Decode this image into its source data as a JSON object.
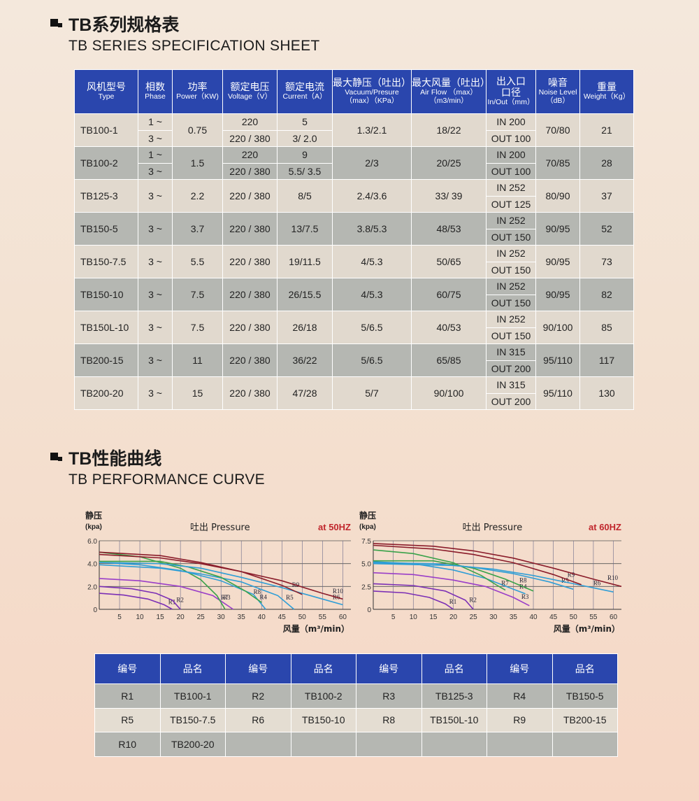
{
  "section1": {
    "title_cn": "TB系列规格表",
    "title_en": "TB SERIES SPECIFICATION SHEET"
  },
  "spec_headers": [
    {
      "cn": "风机型号",
      "en": "Type"
    },
    {
      "cn": "相数",
      "en": "Phase"
    },
    {
      "cn": "功率",
      "en": "Power（KW)"
    },
    {
      "cn": "额定电压",
      "en": "Voltage（V）"
    },
    {
      "cn": "额定电流",
      "en": "Current（A）"
    },
    {
      "cn": "最大静压（吐出）",
      "en": "Vacuum/Presure",
      "en2": "（max）（KPa）"
    },
    {
      "cn": "最大风量（吐出）",
      "en": "Air Flow （max）",
      "en2": "（m3/min）"
    },
    {
      "cn": "出入口",
      "cn2": "口径",
      "en": "In/Out（mm）"
    },
    {
      "cn": "噪音",
      "en": "Noise Level",
      "en2": "（dB）"
    },
    {
      "cn": "重量",
      "en": "Weight（Kg）"
    }
  ],
  "spec_rows": [
    {
      "type": "TB100-1",
      "phase": [
        "1 ~",
        "3 ~"
      ],
      "power": "0.75",
      "voltage": [
        "220",
        "220 / 380"
      ],
      "current": [
        "5",
        "3/ 2.0"
      ],
      "pressure": "1.3/2.1",
      "airflow": "18/22",
      "in": "IN 200",
      "out": "OUT 100",
      "noise": "70/80",
      "weight": "21"
    },
    {
      "type": "TB100-2",
      "phase": [
        "1 ~",
        "3 ~"
      ],
      "power": "1.5",
      "voltage": [
        "220",
        "220 / 380"
      ],
      "current": [
        "9",
        "5.5/ 3.5"
      ],
      "pressure": "2/3",
      "airflow": "20/25",
      "in": "IN 200",
      "out": "OUT 100",
      "noise": "70/85",
      "weight": "28"
    },
    {
      "type": "TB125-3",
      "phase": [
        "3 ~"
      ],
      "power": "2.2",
      "voltage": [
        "220 / 380"
      ],
      "current": [
        "8/5"
      ],
      "pressure": "2.4/3.6",
      "airflow": "33/ 39",
      "in": "IN 252",
      "out": "OUT 125",
      "noise": "80/90",
      "weight": "37"
    },
    {
      "type": "TB150-5",
      "phase": [
        "3 ~"
      ],
      "power": "3.7",
      "voltage": [
        "220 / 380"
      ],
      "current": [
        "13/7.5"
      ],
      "pressure": "3.8/5.3",
      "airflow": "48/53",
      "in": "IN 252",
      "out": "OUT 150",
      "noise": "90/95",
      "weight": "52"
    },
    {
      "type": "TB150-7.5",
      "phase": [
        "3 ~"
      ],
      "power": "5.5",
      "voltage": [
        "220 / 380"
      ],
      "current": [
        "19/11.5"
      ],
      "pressure": "4/5.3",
      "airflow": "50/65",
      "in": "IN 252",
      "out": "OUT 150",
      "noise": "90/95",
      "weight": "73"
    },
    {
      "type": "TB150-10",
      "phase": [
        "3 ~"
      ],
      "power": "7.5",
      "voltage": [
        "220 / 380"
      ],
      "current": [
        "26/15.5"
      ],
      "pressure": "4/5.3",
      "airflow": "60/75",
      "in": "IN 252",
      "out": "OUT 150",
      "noise": "90/95",
      "weight": "82"
    },
    {
      "type": "TB150L-10",
      "phase": [
        "3 ~"
      ],
      "power": "7.5",
      "voltage": [
        "220 / 380"
      ],
      "current": [
        "26/18"
      ],
      "pressure": "5/6.5",
      "airflow": "40/53",
      "in": "IN 252",
      "out": "OUT 150",
      "noise": "90/100",
      "weight": "85"
    },
    {
      "type": "TB200-15",
      "phase": [
        "3 ~"
      ],
      "power": "11",
      "voltage": [
        "220 / 380"
      ],
      "current": [
        "36/22"
      ],
      "pressure": "5/6.5",
      "airflow": "65/85",
      "in": "IN 315",
      "out": "OUT 200",
      "noise": "95/110",
      "weight": "117"
    },
    {
      "type": "TB200-20",
      "phase": [
        "3 ~"
      ],
      "power": "15",
      "voltage": [
        "220 / 380"
      ],
      "current": [
        "47/28"
      ],
      "pressure": "5/7",
      "airflow": "90/100",
      "in": "IN 315",
      "out": "OUT 200",
      "noise": "95/110",
      "weight": "130"
    }
  ],
  "section2": {
    "title_cn": "TB性能曲线",
    "title_en": "TB PERFORMANCE CURVE"
  },
  "colors": {
    "header_blue": "#2a46ad",
    "row_light": "#e1d9ce",
    "row_dark": "#b5b7b2",
    "hz_red": "#c0262c"
  },
  "chart_data": [
    {
      "type": "line",
      "ylabel": "静压",
      "ylabel_unit": "(kpa)",
      "title": "吐出 Pressure",
      "freq": "at 50HZ",
      "xlabel": "风量（m³/min）",
      "xlim": [
        0,
        62
      ],
      "ylim": [
        0,
        6
      ],
      "xticks": [
        5,
        10,
        15,
        20,
        25,
        30,
        35,
        40,
        45,
        50,
        55,
        60
      ],
      "yticks": [
        "0",
        "2.0",
        "4.0",
        "6.0"
      ],
      "series": [
        {
          "name": "R1",
          "color": "#7b2fb5",
          "points": [
            [
              0,
              1.4
            ],
            [
              6,
              1.25
            ],
            [
              12,
              0.9
            ],
            [
              16,
              0.4
            ],
            [
              18,
              0
            ]
          ]
        },
        {
          "name": "R2",
          "color": "#7b2fb5",
          "points": [
            [
              0,
              2.0
            ],
            [
              8,
              1.8
            ],
            [
              14,
              1.4
            ],
            [
              18,
              0.8
            ],
            [
              20,
              0
            ]
          ]
        },
        {
          "name": "R3",
          "color": "#9a3ec8",
          "points": [
            [
              0,
              2.7
            ],
            [
              10,
              2.5
            ],
            [
              20,
              2.0
            ],
            [
              28,
              1.2
            ],
            [
              33,
              0
            ]
          ]
        },
        {
          "name": "R7",
          "color": "#3aa24a",
          "points": [
            [
              0,
              5.0
            ],
            [
              10,
              4.6
            ],
            [
              20,
              3.6
            ],
            [
              25,
              2.6
            ],
            [
              29,
              1.2
            ],
            [
              31,
              0
            ]
          ]
        },
        {
          "name": "R4",
          "color": "#2f9ed6",
          "points": [
            [
              0,
              4.1
            ],
            [
              10,
              3.9
            ],
            [
              20,
              3.4
            ],
            [
              30,
              2.5
            ],
            [
              38,
              1.3
            ],
            [
              41,
              0
            ]
          ]
        },
        {
          "name": "R5",
          "color": "#2f9ed6",
          "points": [
            [
              0,
              3.9
            ],
            [
              15,
              3.6
            ],
            [
              25,
              3.1
            ],
            [
              35,
              2.4
            ],
            [
              44,
              1.2
            ],
            [
              48,
              0
            ]
          ]
        },
        {
          "name": "R8",
          "color": "#3aa24a",
          "points": [
            [
              0,
              4.2
            ],
            [
              15,
              4.2
            ],
            [
              22,
              3.7
            ],
            [
              30,
              2.8
            ],
            [
              36,
              1.6
            ],
            [
              40,
              0.6
            ]
          ]
        },
        {
          "name": "R6",
          "color": "#2f9ed6",
          "points": [
            [
              0,
              4.1
            ],
            [
              15,
              4.0
            ],
            [
              25,
              3.6
            ],
            [
              35,
              2.8
            ],
            [
              45,
              1.9
            ],
            [
              55,
              0.9
            ],
            [
              60,
              0.4
            ]
          ]
        },
        {
          "name": "R9",
          "color": "#8a1c2a",
          "points": [
            [
              0,
              5.0
            ],
            [
              15,
              4.7
            ],
            [
              25,
              4.1
            ],
            [
              35,
              3.3
            ],
            [
              45,
              2.1
            ],
            [
              50,
              1.3
            ]
          ]
        },
        {
          "name": "R10",
          "color": "#8a1c2a",
          "points": [
            [
              0,
              4.8
            ],
            [
              15,
              4.5
            ],
            [
              25,
              4.0
            ],
            [
              35,
              3.3
            ],
            [
              45,
              2.5
            ],
            [
              55,
              1.4
            ],
            [
              60,
              0.9
            ]
          ]
        }
      ]
    },
    {
      "type": "line",
      "ylabel": "静压",
      "ylabel_unit": "(kpa)",
      "title": "吐出 Pressure",
      "freq": "at 60HZ",
      "xlabel": "风量（m³/min）",
      "xlim": [
        0,
        62
      ],
      "ylim": [
        0,
        7.5
      ],
      "xticks": [
        5,
        10,
        15,
        20,
        25,
        30,
        35,
        40,
        45,
        50,
        55,
        60
      ],
      "yticks": [
        "0",
        "2.5",
        "5.0",
        "7.5"
      ],
      "series": [
        {
          "name": "R1",
          "color": "#7b2fb5",
          "points": [
            [
              0,
              2.0
            ],
            [
              8,
              1.8
            ],
            [
              14,
              1.3
            ],
            [
              18,
              0.6
            ],
            [
              20,
              0
            ]
          ]
        },
        {
          "name": "R2",
          "color": "#7b2fb5",
          "points": [
            [
              0,
              2.8
            ],
            [
              10,
              2.6
            ],
            [
              18,
              2.0
            ],
            [
              23,
              1.0
            ],
            [
              25,
              0
            ]
          ]
        },
        {
          "name": "R3",
          "color": "#9a3ec8",
          "points": [
            [
              0,
              4.0
            ],
            [
              10,
              3.8
            ],
            [
              20,
              3.2
            ],
            [
              28,
              2.5
            ],
            [
              35,
              1.3
            ],
            [
              39,
              0.4
            ]
          ]
        },
        {
          "name": "R4",
          "color": "#2f9ed6",
          "points": [
            [
              0,
              5.2
            ],
            [
              10,
              5.0
            ],
            [
              20,
              4.3
            ],
            [
              28,
              3.4
            ],
            [
              35,
              2.2
            ],
            [
              38,
              1.7
            ]
          ]
        },
        {
          "name": "R7",
          "color": "#3aa24a",
          "points": [
            [
              0,
              6.5
            ],
            [
              10,
              6.1
            ],
            [
              20,
              5.1
            ],
            [
              27,
              3.7
            ],
            [
              31,
              2.6
            ],
            [
              33,
              2.1
            ]
          ]
        },
        {
          "name": "R8",
          "color": "#3aa24a",
          "points": [
            [
              0,
              5.3
            ],
            [
              15,
              5.3
            ],
            [
              25,
              4.5
            ],
            [
              33,
              3.3
            ],
            [
              40,
              2.0
            ]
          ]
        },
        {
          "name": "R5",
          "color": "#2f9ed6",
          "points": [
            [
              0,
              5.1
            ],
            [
              15,
              5.0
            ],
            [
              25,
              4.6
            ],
            [
              35,
              3.9
            ],
            [
              44,
              3.0
            ],
            [
              50,
              2.2
            ]
          ]
        },
        {
          "name": "R6",
          "color": "#2f9ed6",
          "points": [
            [
              0,
              5.0
            ],
            [
              20,
              4.8
            ],
            [
              30,
              4.4
            ],
            [
              40,
              3.7
            ],
            [
              50,
              2.8
            ],
            [
              60,
              1.9
            ]
          ]
        },
        {
          "name": "R9",
          "color": "#8a1c2a",
          "points": [
            [
              0,
              7.0
            ],
            [
              15,
              6.6
            ],
            [
              25,
              6.0
            ],
            [
              35,
              5.1
            ],
            [
              45,
              3.8
            ],
            [
              52,
              2.7
            ]
          ]
        },
        {
          "name": "R10",
          "color": "#8a1c2a",
          "points": [
            [
              0,
              7.2
            ],
            [
              15,
              6.9
            ],
            [
              25,
              6.4
            ],
            [
              35,
              5.6
            ],
            [
              45,
              4.5
            ],
            [
              55,
              3.3
            ],
            [
              62,
              2.5
            ]
          ]
        }
      ]
    }
  ],
  "legend": {
    "headers": [
      "编号",
      "品名",
      "编号",
      "品名",
      "编号",
      "品名",
      "编号",
      "品名"
    ],
    "rows": [
      [
        "R1",
        "TB100-1",
        "R2",
        "TB100-2",
        "R3",
        "TB125-3",
        "R4",
        "TB150-5"
      ],
      [
        "R5",
        "TB150-7.5",
        "R6",
        "TB150-10",
        "R8",
        "TB150L-10",
        "R9",
        "TB200-15"
      ],
      [
        "R10",
        "TB200-20",
        "",
        "",
        "",
        "",
        "",
        ""
      ]
    ]
  }
}
